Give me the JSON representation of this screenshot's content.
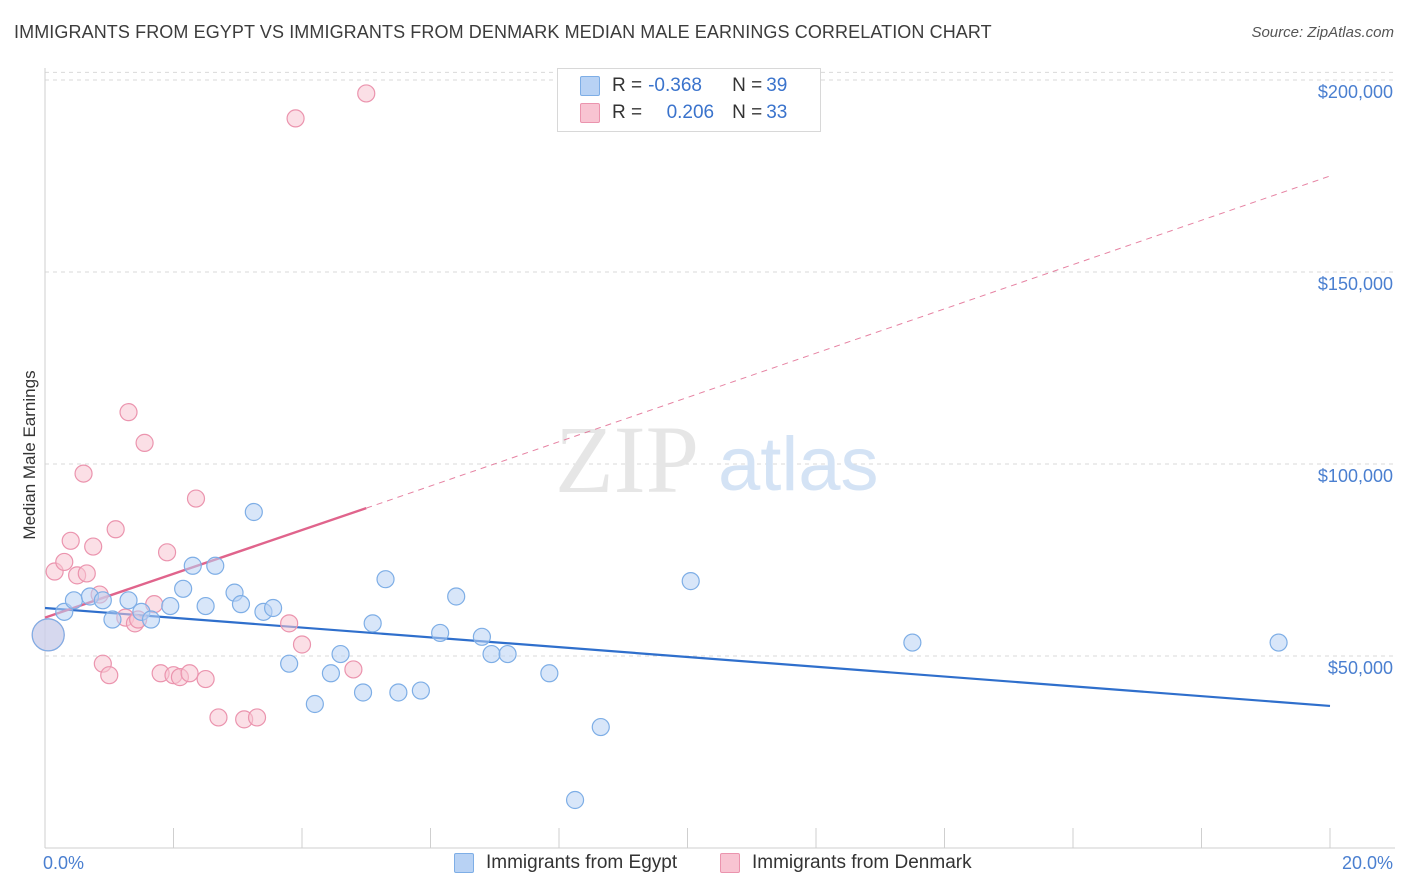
{
  "title": "IMMIGRANTS FROM EGYPT VS IMMIGRANTS FROM DENMARK MEDIAN MALE EARNINGS CORRELATION CHART",
  "source": "Source: ZipAtlas.com",
  "watermark": {
    "zip": "ZIP",
    "atlas": "atlas"
  },
  "legend_top": {
    "rows": [
      {
        "r_label": "R = ",
        "r_value": "-0.368",
        "n_label": "N = ",
        "n_value": "39"
      },
      {
        "r_label": "R = ",
        "r_value": "0.206",
        "n_label": "N = ",
        "n_value": "33"
      }
    ]
  },
  "legend_bottom": {
    "egypt": "Immigrants from Egypt",
    "denmark": "Immigrants from Denmark"
  },
  "colors": {
    "egypt_fill": "#b8d2f4",
    "egypt_stroke": "#7eaee6",
    "egypt_line": "#2f6fcc",
    "denmark_fill": "#f8c4d2",
    "denmark_stroke": "#eb94ae",
    "denmark_line": "#e0648c",
    "grid": "#d9d9d9",
    "tick_label": "#4a7fd0"
  },
  "chart_data": {
    "type": "scatter",
    "title": "IMMIGRANTS FROM EGYPT VS IMMIGRANTS FROM DENMARK MEDIAN MALE EARNINGS CORRELATION CHART",
    "xlabel": "",
    "ylabel": "Median Male Earnings",
    "xlim": [
      0,
      20
    ],
    "ylim": [
      0,
      205000
    ],
    "x_tick_labels": [
      {
        "value": 0,
        "label": "0.0%"
      },
      {
        "value": 20,
        "label": "20.0%"
      }
    ],
    "y_ticks": [
      {
        "value": 50000,
        "label": "$50,000"
      },
      {
        "value": 100000,
        "label": "$100,000"
      },
      {
        "value": 150000,
        "label": "$150,000"
      },
      {
        "value": 200000,
        "label": "$200,000"
      }
    ],
    "x_minor_ticks": [
      0,
      2,
      4,
      6,
      8,
      10,
      12,
      14,
      16,
      18,
      20
    ],
    "series": [
      {
        "name": "Immigrants from Egypt",
        "stats": {
          "R": -0.368,
          "N": 39
        },
        "trend": {
          "x0": 0,
          "y0": 62500,
          "x1": 20,
          "y1": 37000,
          "dashed_extension": false
        },
        "points": [
          {
            "x": 0.05,
            "y": 55500,
            "big": true
          },
          {
            "x": 0.3,
            "y": 61500
          },
          {
            "x": 0.45,
            "y": 64500
          },
          {
            "x": 0.7,
            "y": 65500
          },
          {
            "x": 0.9,
            "y": 64500
          },
          {
            "x": 1.05,
            "y": 59500
          },
          {
            "x": 1.3,
            "y": 64500
          },
          {
            "x": 1.5,
            "y": 61500
          },
          {
            "x": 1.65,
            "y": 59500
          },
          {
            "x": 1.95,
            "y": 63000
          },
          {
            "x": 2.15,
            "y": 67500
          },
          {
            "x": 2.3,
            "y": 73500
          },
          {
            "x": 2.5,
            "y": 63000
          },
          {
            "x": 2.65,
            "y": 73500
          },
          {
            "x": 2.95,
            "y": 66500
          },
          {
            "x": 3.05,
            "y": 63500
          },
          {
            "x": 3.25,
            "y": 87500
          },
          {
            "x": 3.4,
            "y": 61500
          },
          {
            "x": 3.55,
            "y": 62500
          },
          {
            "x": 3.8,
            "y": 48000
          },
          {
            "x": 4.2,
            "y": 37500
          },
          {
            "x": 4.45,
            "y": 45500
          },
          {
            "x": 4.6,
            "y": 50500
          },
          {
            "x": 4.95,
            "y": 40500
          },
          {
            "x": 5.1,
            "y": 58500
          },
          {
            "x": 5.3,
            "y": 70000
          },
          {
            "x": 5.5,
            "y": 40500
          },
          {
            "x": 5.85,
            "y": 41000
          },
          {
            "x": 6.15,
            "y": 56000
          },
          {
            "x": 6.4,
            "y": 65500
          },
          {
            "x": 6.8,
            "y": 55000
          },
          {
            "x": 6.95,
            "y": 50500
          },
          {
            "x": 7.2,
            "y": 50500
          },
          {
            "x": 7.85,
            "y": 45500
          },
          {
            "x": 8.25,
            "y": 12500
          },
          {
            "x": 8.65,
            "y": 31500
          },
          {
            "x": 10.05,
            "y": 69500
          },
          {
            "x": 13.5,
            "y": 53500
          },
          {
            "x": 19.2,
            "y": 53500
          }
        ]
      },
      {
        "name": "Immigrants from Denmark",
        "stats": {
          "R": 0.206,
          "N": 33
        },
        "trend": {
          "x0": 0,
          "y0": 60000,
          "x1": 5.0,
          "y1": 88500,
          "dashed_to_x": 20,
          "dashed_to_y": 175000
        },
        "points": [
          {
            "x": 0.05,
            "y": 55500,
            "big": true
          },
          {
            "x": 0.15,
            "y": 72000
          },
          {
            "x": 0.3,
            "y": 74500
          },
          {
            "x": 0.4,
            "y": 80000
          },
          {
            "x": 0.5,
            "y": 71000
          },
          {
            "x": 0.6,
            "y": 97500
          },
          {
            "x": 0.65,
            "y": 71500
          },
          {
            "x": 0.75,
            "y": 78500
          },
          {
            "x": 0.85,
            "y": 66000
          },
          {
            "x": 0.9,
            "y": 48000
          },
          {
            "x": 1.0,
            "y": 45000
          },
          {
            "x": 1.1,
            "y": 83000
          },
          {
            "x": 1.25,
            "y": 60000
          },
          {
            "x": 1.3,
            "y": 113500
          },
          {
            "x": 1.4,
            "y": 58500
          },
          {
            "x": 1.45,
            "y": 59500
          },
          {
            "x": 1.55,
            "y": 105500
          },
          {
            "x": 1.7,
            "y": 63500
          },
          {
            "x": 1.8,
            "y": 45500
          },
          {
            "x": 1.9,
            "y": 77000
          },
          {
            "x": 2.0,
            "y": 45000
          },
          {
            "x": 2.1,
            "y": 44500
          },
          {
            "x": 2.25,
            "y": 45500
          },
          {
            "x": 2.35,
            "y": 91000
          },
          {
            "x": 2.5,
            "y": 44000
          },
          {
            "x": 2.7,
            "y": 34000
          },
          {
            "x": 3.1,
            "y": 33500
          },
          {
            "x": 3.3,
            "y": 34000
          },
          {
            "x": 3.8,
            "y": 58500
          },
          {
            "x": 4.0,
            "y": 53000
          },
          {
            "x": 4.8,
            "y": 46500
          },
          {
            "x": 3.9,
            "y": 190000
          },
          {
            "x": 5.0,
            "y": 196500
          }
        ]
      }
    ]
  }
}
